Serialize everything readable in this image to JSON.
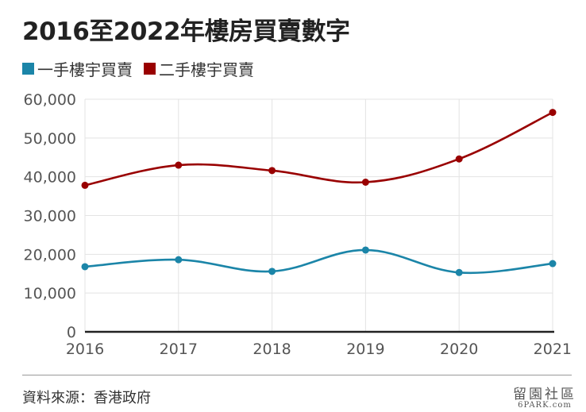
{
  "chart_data": {
    "type": "line",
    "title": "2016至2022年樓房買賣數字",
    "categories": [
      "2016",
      "2017",
      "2018",
      "2019",
      "2020",
      "2021"
    ],
    "series": [
      {
        "name": "一手樓宇買賣",
        "color": "#1b85a8",
        "values": [
          16800,
          18600,
          15600,
          21100,
          15300,
          17600
        ]
      },
      {
        "name": "二手樓宇買賣",
        "color": "#990000",
        "values": [
          37800,
          43000,
          41600,
          38600,
          44600,
          56600
        ]
      }
    ],
    "ylim": [
      0,
      60000
    ],
    "yticks": [
      "0",
      "10,000",
      "20,000",
      "30,000",
      "40,000",
      "50,000",
      "60,000"
    ],
    "grid": true,
    "legend_position": "top-left"
  },
  "source": "資料來源：香港政府",
  "watermark": {
    "top": "留園社區",
    "bottom": "6PARK.com"
  }
}
